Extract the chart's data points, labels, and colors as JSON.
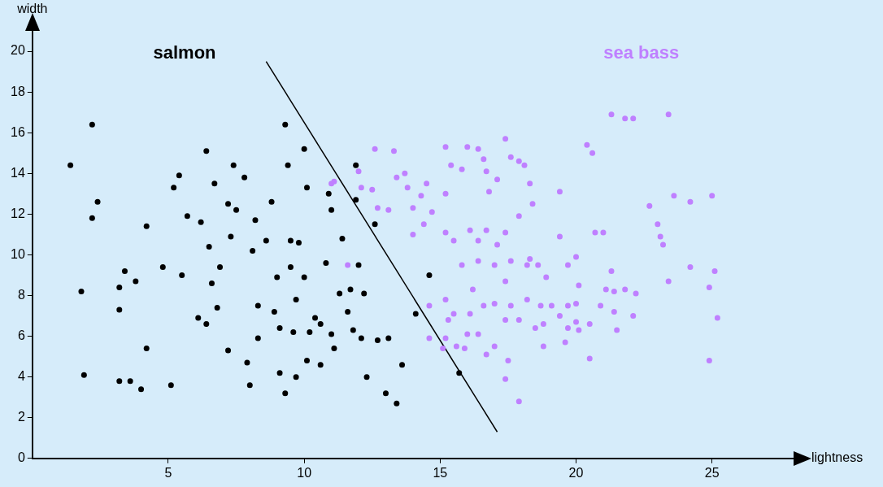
{
  "chart_data": {
    "type": "scatter",
    "xlabel": "lightness",
    "ylabel": "width",
    "xlim": [
      0,
      28
    ],
    "ylim": [
      0,
      21
    ],
    "xticks": [
      5,
      10,
      15,
      20,
      25
    ],
    "yticks": [
      0,
      2,
      4,
      6,
      8,
      10,
      12,
      14,
      16,
      18,
      20
    ],
    "grid": false,
    "legend": false,
    "marker": "circle",
    "series": [
      {
        "name": "salmon",
        "color": "#000000",
        "x": [
          1.4,
          2.2,
          2.4,
          2.2,
          1.8,
          1.9,
          3.2,
          3.6,
          4.0,
          4.2,
          3.2,
          3.2,
          3.4,
          3.8,
          4.2,
          4.8,
          5.1,
          5.2,
          5.4,
          5.5,
          5.7,
          6.1,
          6.2,
          6.4,
          6.4,
          6.6,
          6.7,
          6.5,
          6.8,
          6.9,
          7.2,
          7.4,
          7.5,
          7.2,
          7.9,
          8.0,
          7.8,
          8.1,
          8.2,
          8.3,
          8.3,
          8.6,
          8.8,
          8.9,
          9.0,
          9.1,
          9.1,
          9.4,
          9.3,
          9.5,
          9.5,
          9.7,
          9.7,
          9.6,
          9.8,
          10.0,
          10.0,
          10.1,
          10.1,
          10.2,
          10.4,
          10.6,
          10.8,
          10.9,
          11.0,
          11.0,
          11.1,
          11.3,
          11.4,
          11.6,
          11.7,
          11.8,
          11.9,
          11.9,
          12.0,
          12.1,
          12.2,
          12.3,
          12.6,
          12.7,
          13.0,
          13.1,
          13.4,
          14.1,
          14.6,
          15.7,
          13.6,
          10.6,
          9.3,
          7.3
        ],
        "values": [
          14.4,
          16.4,
          12.6,
          11.8,
          8.2,
          4.1,
          3.8,
          3.8,
          3.4,
          5.4,
          7.3,
          8.4,
          9.2,
          8.7,
          11.4,
          9.4,
          3.6,
          13.3,
          13.9,
          9.0,
          11.9,
          6.9,
          11.6,
          15.1,
          6.6,
          8.6,
          13.5,
          10.4,
          7.4,
          9.4,
          12.5,
          14.4,
          12.2,
          5.3,
          4.7,
          3.6,
          13.8,
          10.2,
          11.7,
          7.5,
          5.9,
          10.7,
          12.6,
          7.2,
          8.9,
          6.4,
          4.2,
          14.4,
          16.4,
          10.7,
          9.4,
          4.0,
          7.8,
          6.2,
          10.6,
          8.9,
          15.2,
          13.3,
          4.8,
          6.2,
          6.9,
          6.6,
          9.6,
          13.0,
          6.1,
          12.2,
          5.4,
          8.1,
          10.8,
          7.2,
          8.3,
          6.3,
          14.4,
          12.7,
          9.5,
          5.9,
          8.1,
          4.0,
          11.5,
          5.8,
          3.2,
          5.9,
          2.7,
          7.1,
          9.0,
          4.2,
          4.6,
          4.6,
          3.2,
          10.9
        ]
      },
      {
        "name": "sea bass",
        "color": "#bf80ff",
        "x": [
          11.0,
          12.0,
          12.6,
          13.3,
          12.1,
          12.5,
          12.7,
          13.1,
          13.4,
          13.7,
          13.8,
          14.0,
          14.3,
          14.5,
          14.0,
          14.4,
          14.7,
          15.2,
          15.2,
          15.4,
          15.8,
          16.0,
          16.4,
          16.6,
          16.7,
          16.8,
          17.1,
          17.4,
          17.6,
          17.9,
          18.1,
          18.3,
          18.4,
          15.2,
          15.5,
          16.1,
          16.4,
          16.7,
          17.1,
          17.4,
          17.9,
          18.3,
          15.8,
          16.2,
          16.4,
          17.0,
          17.4,
          17.6,
          18.2,
          18.6,
          18.9,
          19.4,
          19.4,
          19.7,
          20.0,
          20.1,
          20.4,
          20.6,
          20.7,
          21.0,
          21.1,
          21.3,
          21.4,
          21.8,
          22.2,
          21.3,
          21.8,
          22.1,
          22.7,
          23.0,
          23.1,
          23.2,
          23.6,
          24.2,
          23.4,
          24.2,
          25.0,
          25.1,
          24.9,
          25.2,
          23.4,
          15.2,
          15.5,
          16.1,
          16.6,
          17.0,
          17.6,
          18.2,
          18.7,
          19.1,
          19.4,
          19.7,
          20.0,
          15.2,
          15.6,
          16.0,
          16.4,
          16.7,
          17.0,
          17.4,
          17.9,
          18.5,
          18.8,
          19.6,
          19.7,
          20.0,
          20.1,
          20.5,
          20.9,
          21.4,
          22.1,
          21.5,
          17.4,
          17.5,
          17.9,
          18.8,
          20.5,
          14.6,
          15.1,
          15.9,
          15.3,
          14.6,
          24.9,
          11.6,
          11.1
        ],
        "values": [
          13.5,
          14.1,
          15.2,
          15.1,
          13.3,
          13.2,
          12.3,
          12.2,
          13.8,
          14.0,
          13.3,
          12.3,
          12.9,
          13.5,
          11.0,
          11.5,
          12.1,
          13.0,
          15.3,
          14.4,
          14.2,
          15.3,
          15.2,
          14.7,
          14.1,
          13.1,
          13.7,
          15.7,
          14.8,
          14.6,
          14.4,
          13.5,
          12.5,
          11.1,
          10.7,
          11.2,
          10.7,
          11.2,
          10.5,
          11.1,
          11.9,
          9.8,
          9.5,
          8.3,
          9.7,
          9.5,
          8.7,
          9.7,
          9.5,
          9.5,
          8.9,
          10.9,
          13.1,
          9.5,
          9.9,
          8.5,
          15.4,
          15.0,
          11.1,
          11.1,
          8.3,
          9.2,
          8.2,
          8.3,
          8.1,
          16.9,
          16.7,
          16.7,
          12.4,
          11.5,
          10.9,
          10.5,
          12.9,
          12.6,
          8.7,
          9.4,
          12.9,
          9.2,
          8.4,
          6.9,
          16.9,
          7.8,
          7.1,
          7.1,
          7.5,
          7.6,
          7.5,
          7.8,
          7.5,
          7.5,
          7.0,
          7.5,
          7.6,
          5.9,
          5.5,
          6.1,
          6.1,
          5.1,
          5.5,
          6.8,
          6.8,
          6.4,
          6.6,
          5.7,
          6.4,
          6.7,
          6.3,
          6.6,
          7.5,
          7.2,
          7.0,
          6.3,
          3.9,
          4.8,
          2.8,
          5.5,
          4.9,
          5.9,
          5.4,
          5.4,
          6.8,
          7.5,
          4.8,
          9.5,
          13.6
        ]
      },
      {
        "type": "line",
        "color": "#000000",
        "marker": "none",
        "x": [
          8.6,
          17.1
        ],
        "values": [
          19.5,
          1.3
        ]
      }
    ]
  }
}
